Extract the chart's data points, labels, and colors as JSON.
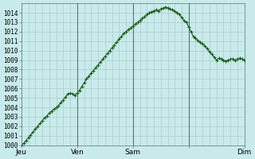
{
  "bg_color": "#c8eaea",
  "grid_color": "#aacccc",
  "line_color": "#1a5c1a",
  "marker_color": "#1a5c1a",
  "ylim": [
    1000,
    1015
  ],
  "yticks": [
    1000,
    1001,
    1002,
    1003,
    1004,
    1005,
    1006,
    1007,
    1008,
    1009,
    1010,
    1011,
    1012,
    1013,
    1014
  ],
  "xlabel_ticks": [
    0,
    24,
    48,
    72,
    96
  ],
  "xlabel_labels": [
    "Jeu",
    "Ven",
    "Sam",
    "",
    "Dim"
  ],
  "vlines": [
    24,
    48,
    72
  ],
  "data_x": [
    0,
    1,
    2,
    3,
    4,
    5,
    6,
    7,
    8,
    9,
    10,
    11,
    12,
    13,
    14,
    15,
    16,
    17,
    18,
    19,
    20,
    21,
    22,
    23,
    24,
    25,
    26,
    27,
    28,
    29,
    30,
    31,
    32,
    33,
    34,
    35,
    36,
    37,
    38,
    39,
    40,
    41,
    42,
    43,
    44,
    45,
    46,
    47,
    48,
    49,
    50,
    51,
    52,
    53,
    54,
    55,
    56,
    57,
    58,
    59,
    60,
    61,
    62,
    63,
    64,
    65,
    66,
    67,
    68,
    69,
    70,
    71,
    72,
    73,
    74,
    75,
    76,
    77,
    78,
    79,
    80,
    81,
    82,
    83,
    84,
    85,
    86,
    87,
    88,
    89,
    90,
    91,
    92,
    93,
    94,
    95,
    96
  ],
  "data_y": [
    1000.0,
    1000.2,
    1000.5,
    1000.8,
    1001.1,
    1001.4,
    1001.7,
    1002.0,
    1002.3,
    1002.6,
    1002.9,
    1003.1,
    1003.4,
    1003.6,
    1003.8,
    1004.0,
    1004.2,
    1004.5,
    1004.8,
    1005.1,
    1005.4,
    1005.5,
    1005.4,
    1005.3,
    1005.5,
    1005.8,
    1006.2,
    1006.6,
    1007.0,
    1007.3,
    1007.6,
    1007.9,
    1008.2,
    1008.5,
    1008.8,
    1009.1,
    1009.4,
    1009.7,
    1010.0,
    1010.3,
    1010.6,
    1010.9,
    1011.2,
    1011.5,
    1011.8,
    1012.0,
    1012.2,
    1012.4,
    1012.6,
    1012.8,
    1013.0,
    1013.2,
    1013.4,
    1013.6,
    1013.8,
    1014.0,
    1014.1,
    1014.2,
    1014.3,
    1014.2,
    1014.4,
    1014.5,
    1014.6,
    1014.5,
    1014.4,
    1014.3,
    1014.2,
    1014.0,
    1013.8,
    1013.5,
    1013.2,
    1013.0,
    1012.5,
    1012.0,
    1011.5,
    1011.3,
    1011.1,
    1010.9,
    1010.7,
    1010.5,
    1010.2,
    1009.9,
    1009.6,
    1009.3,
    1009.0,
    1009.2,
    1009.1,
    1009.0,
    1008.9,
    1009.0,
    1009.1,
    1009.1,
    1009.0,
    1009.1,
    1009.2,
    1009.1,
    1009.0
  ]
}
